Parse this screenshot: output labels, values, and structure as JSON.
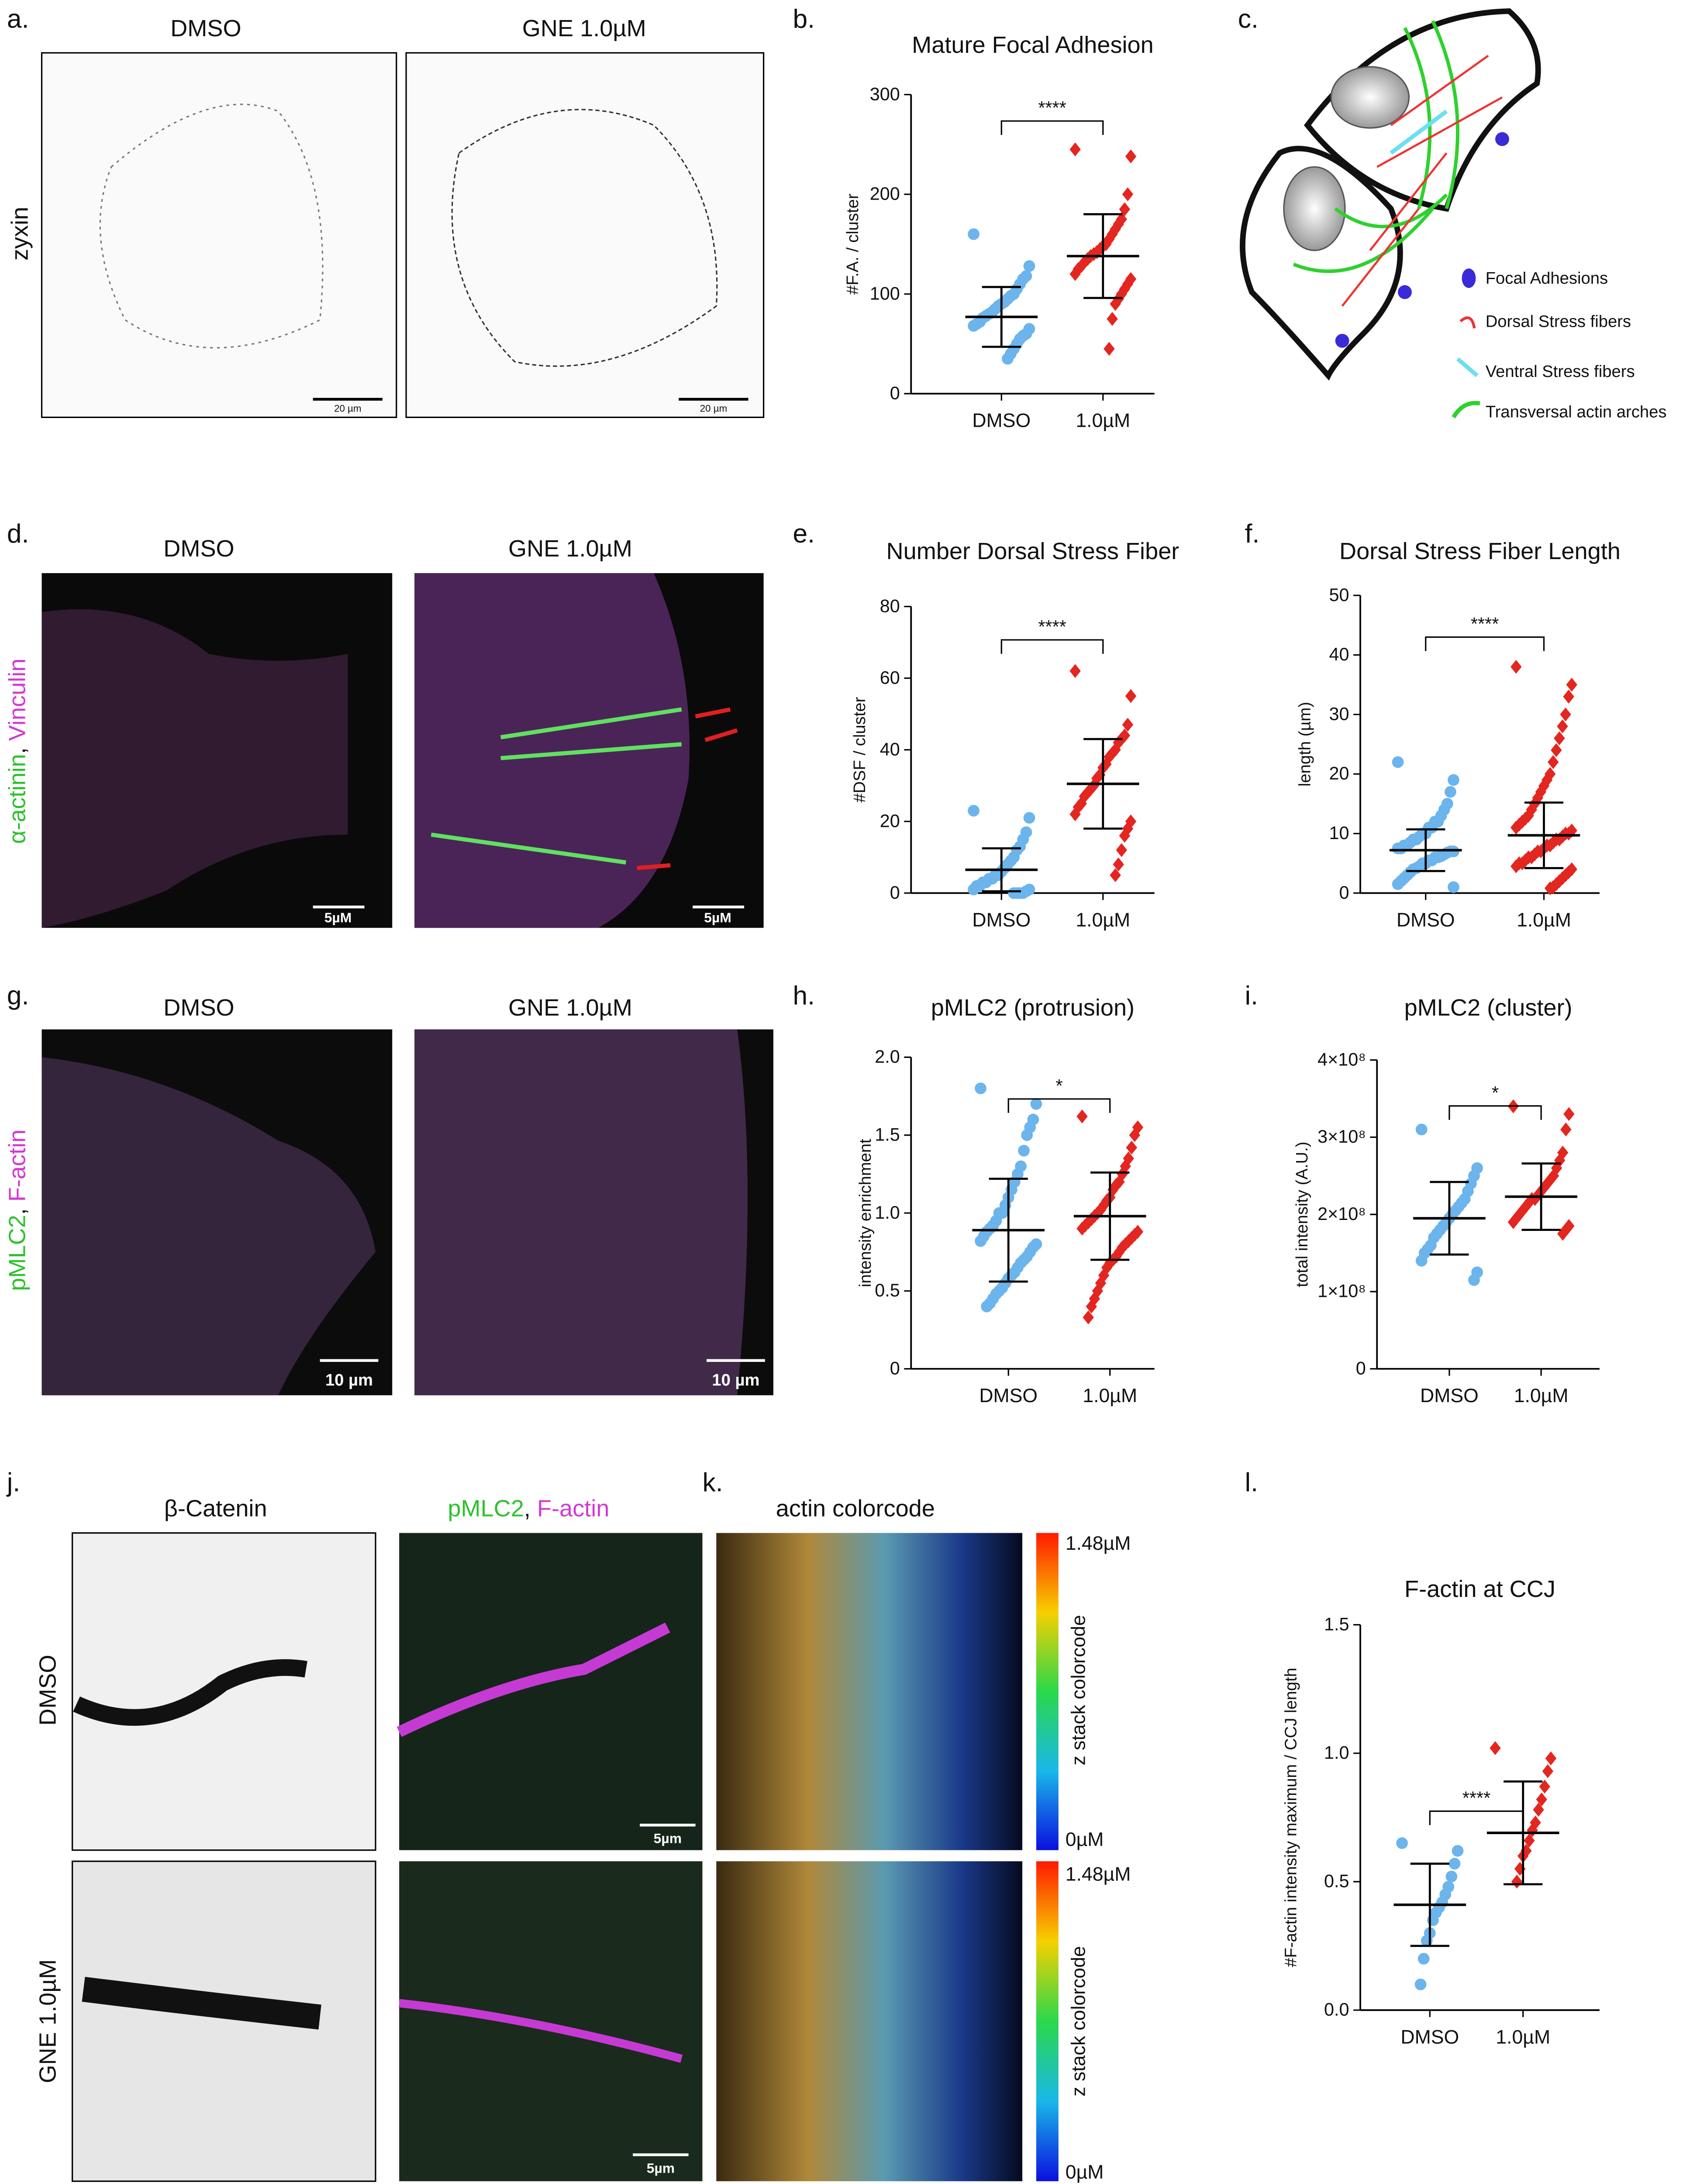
{
  "figure": {
    "panel_labels": [
      "a.",
      "b.",
      "c.",
      "d.",
      "e.",
      "f.",
      "g.",
      "h.",
      "i.",
      "j.",
      "k.",
      "l."
    ],
    "a": {
      "titles": [
        "DMSO",
        "GNE 1.0µM"
      ],
      "stain": "zyxin",
      "scale": [
        "20 µm",
        "20 µm"
      ]
    },
    "c": {
      "legend": [
        "Focal Adhesions",
        "Dorsal Stress fibers",
        "Ventral Stress fibers",
        "Transversal actin arches"
      ]
    },
    "d": {
      "titles": [
        "DMSO",
        "GNE 1.0µM"
      ],
      "stain": [
        "α-actinin",
        ", ",
        "Vinculin"
      ],
      "scale": [
        "5µM",
        "5µM"
      ]
    },
    "g": {
      "titles": [
        "DMSO",
        "GNE 1.0µM"
      ],
      "stain": [
        "pMLC2",
        ", ",
        "F-actin"
      ],
      "scale": [
        "10 µm",
        "10 µm"
      ]
    },
    "j": {
      "title": "β-Catenin",
      "rows": [
        "DMSO",
        "GNE 1.0µM"
      ],
      "merge_title": [
        "pMLC2",
        ", ",
        "F-actin"
      ],
      "scale": [
        "5µm",
        "5µm"
      ]
    },
    "k": {
      "title": "actin colorcode",
      "colorbar_max": [
        "1.48µM",
        "1.48µM"
      ],
      "colorbar_min": [
        "0µM",
        "0µM"
      ],
      "colorbar_label": [
        "z stack colorcode",
        "z stack colorcode"
      ]
    }
  },
  "chart_data": [
    {
      "type": "dot",
      "title": "Mature Focal Adhesion",
      "ylabel": "#F.A. / cluster",
      "categories": [
        "DMSO",
        "1.0µM"
      ],
      "significance": "****",
      "ylim": [
        0,
        300
      ],
      "yticks": [
        0,
        100,
        200,
        300
      ],
      "groups": [
        {
          "color": "#6cb4ec",
          "marker": "circle",
          "mean": 77,
          "sd": 30,
          "values": [
            160,
            128,
            118,
            115,
            110,
            105,
            100,
            98,
            95,
            92,
            90,
            88,
            85,
            82,
            80,
            78,
            76,
            72,
            70,
            68,
            65,
            60,
            58,
            55,
            50,
            45,
            40,
            35
          ]
        },
        {
          "color": "#e3261f",
          "marker": "diamond",
          "mean": 138,
          "sd": 42,
          "values": [
            245,
            238,
            200,
            185,
            175,
            170,
            165,
            160,
            155,
            150,
            148,
            145,
            142,
            140,
            138,
            135,
            132,
            128,
            125,
            120,
            115,
            110,
            105,
            100,
            95,
            90,
            75,
            45
          ]
        }
      ]
    },
    {
      "type": "dot",
      "title": "Number Dorsal Stress Fiber",
      "ylabel": "#DSF / cluster",
      "categories": [
        "DMSO",
        "1.0µM"
      ],
      "significance": "****",
      "ylim": [
        0,
        80
      ],
      "yticks": [
        0,
        20,
        40,
        60,
        80
      ],
      "groups": [
        {
          "color": "#6cb4ec",
          "marker": "circle",
          "mean": 6.5,
          "sd": 6,
          "values": [
            23,
            21,
            17,
            15,
            13,
            12,
            10,
            9,
            8,
            7,
            6,
            5,
            5,
            4,
            4,
            3,
            3,
            2,
            2,
            1,
            1,
            0.5,
            0,
            0,
            0,
            0
          ]
        },
        {
          "color": "#e3261f",
          "marker": "diamond",
          "mean": 30.5,
          "sd": 12.5,
          "values": [
            62,
            55,
            47,
            44,
            43,
            42,
            40,
            39,
            38,
            36,
            35,
            33,
            32,
            30,
            29,
            28,
            27,
            25,
            24,
            22,
            20,
            18,
            16,
            12,
            8,
            5
          ]
        }
      ]
    },
    {
      "type": "dot",
      "title": "Dorsal Stress Fiber Length",
      "ylabel": "length (µm)",
      "categories": [
        "DMSO",
        "1.0µM"
      ],
      "significance": "****",
      "ylim": [
        0,
        50
      ],
      "yticks": [
        0,
        10,
        20,
        30,
        40,
        50
      ],
      "groups": [
        {
          "color": "#6cb4ec",
          "marker": "circle",
          "mean": 7.2,
          "sd": 3.5,
          "values": [
            22,
            19,
            17,
            15,
            14,
            13,
            12,
            12,
            11,
            11,
            10,
            10,
            9.5,
            9,
            9,
            8.5,
            8,
            8,
            7.5,
            7.5,
            7,
            7,
            6.8,
            6.5,
            6.2,
            6,
            6,
            5.5,
            5.5,
            5,
            5,
            4.5,
            4.2,
            4,
            3.5,
            3,
            2.5,
            2,
            1.5,
            1
          ]
        },
        {
          "color": "#e3261f",
          "marker": "diamond",
          "mean": 9.7,
          "sd": 5.5,
          "values": [
            38,
            35,
            33,
            30,
            28,
            26,
            24,
            22,
            20,
            19,
            18,
            17,
            16,
            15,
            14,
            13,
            12.5,
            12,
            11.5,
            11,
            10.5,
            10,
            10,
            9.5,
            9,
            9,
            8.5,
            8,
            8,
            7.5,
            7,
            7,
            6.5,
            6,
            6,
            5.5,
            5,
            5,
            4.5,
            4,
            3.5,
            3,
            2.5,
            2,
            1.5,
            1,
            0.8
          ]
        }
      ]
    },
    {
      "type": "dot",
      "title": "pMLC2 (protrusion)",
      "ylabel": "intensity enrichment",
      "categories": [
        "DMSO",
        "1.0µM"
      ],
      "significance": "*",
      "ylim": [
        0,
        2
      ],
      "yticks": [
        0,
        0.5,
        {
          "value": 1,
          "label": "1.0"
        },
        1.5,
        {
          "value": 2,
          "label": "2.0"
        }
      ],
      "groups": [
        {
          "color": "#6cb4ec",
          "marker": "circle",
          "mean": 0.89,
          "sd": 0.33,
          "values": [
            1.8,
            1.7,
            1.6,
            1.55,
            1.5,
            1.4,
            1.3,
            1.25,
            1.2,
            1.15,
            1.1,
            1.05,
            1.0,
            1.0,
            0.95,
            0.92,
            0.9,
            0.88,
            0.85,
            0.82,
            0.8,
            0.78,
            0.75,
            0.72,
            0.7,
            0.68,
            0.65,
            0.62,
            0.6,
            0.58,
            0.55,
            0.52,
            0.5,
            0.48,
            0.45,
            0.42,
            0.4
          ]
        },
        {
          "color": "#e3261f",
          "marker": "diamond",
          "mean": 0.98,
          "sd": 0.28,
          "values": [
            1.62,
            1.55,
            1.5,
            1.42,
            1.35,
            1.3,
            1.25,
            1.2,
            1.18,
            1.15,
            1.1,
            1.08,
            1.05,
            1.02,
            1.0,
            0.98,
            0.96,
            0.94,
            0.92,
            0.9,
            0.88,
            0.86,
            0.84,
            0.82,
            0.8,
            0.78,
            0.75,
            0.72,
            0.7,
            0.68,
            0.65,
            0.6,
            0.55,
            0.5,
            0.45,
            0.4,
            0.33
          ]
        }
      ]
    },
    {
      "type": "dot",
      "title": "pMLC2 (cluster)",
      "ylabel": "total intensity (A.U.)",
      "categories": [
        "DMSO",
        "1.0µM"
      ],
      "significance": "*",
      "ylim": [
        0,
        400000000
      ],
      "yticks": [
        0,
        {
          "value": 100000000,
          "label": "1×10⁸"
        },
        {
          "value": 200000000,
          "label": "2×10⁸"
        },
        {
          "value": 300000000,
          "label": "3×10⁸"
        },
        {
          "value": 400000000,
          "label": "4×10⁸"
        }
      ],
      "groups": [
        {
          "color": "#6cb4ec",
          "marker": "circle",
          "mean": 195000000,
          "sd": 47000000,
          "values": [
            310000000,
            260000000,
            250000000,
            240000000,
            230000000,
            220000000,
            215000000,
            210000000,
            205000000,
            200000000,
            195000000,
            190000000,
            185000000,
            180000000,
            175000000,
            170000000,
            160000000,
            155000000,
            150000000,
            140000000,
            125000000,
            115000000
          ]
        },
        {
          "color": "#e3261f",
          "marker": "diamond",
          "mean": 223000000,
          "sd": 43000000,
          "values": [
            340000000,
            330000000,
            310000000,
            280000000,
            270000000,
            260000000,
            250000000,
            245000000,
            240000000,
            235000000,
            230000000,
            225000000,
            220000000,
            220000000,
            215000000,
            210000000,
            205000000,
            200000000,
            195000000,
            190000000,
            185000000,
            180000000,
            175000000
          ]
        }
      ]
    },
    {
      "type": "dot",
      "title": "F-actin at CCJ",
      "ylabel": "#F-actin intensity maximum / CCJ length",
      "categories": [
        "DMSO",
        "1.0µM"
      ],
      "significance": "****",
      "ylim": [
        0,
        1.5
      ],
      "yticks": [
        {
          "value": 0,
          "label": "0.0"
        },
        0.5,
        {
          "value": 1,
          "label": "1.0"
        },
        1.5
      ],
      "groups": [
        {
          "color": "#6cb4ec",
          "marker": "circle",
          "mean": 0.41,
          "sd": 0.16,
          "values": [
            0.65,
            0.62,
            0.57,
            0.52,
            0.48,
            0.45,
            0.42,
            0.4,
            0.38,
            0.35,
            0.3,
            0.27,
            0.2,
            0.1
          ]
        },
        {
          "color": "#e3261f",
          "marker": "diamond",
          "mean": 0.69,
          "sd": 0.2,
          "values": [
            1.02,
            0.98,
            0.93,
            0.87,
            0.82,
            0.78,
            0.73,
            0.7,
            0.66,
            0.62,
            0.6,
            0.55,
            0.5
          ]
        }
      ]
    }
  ]
}
